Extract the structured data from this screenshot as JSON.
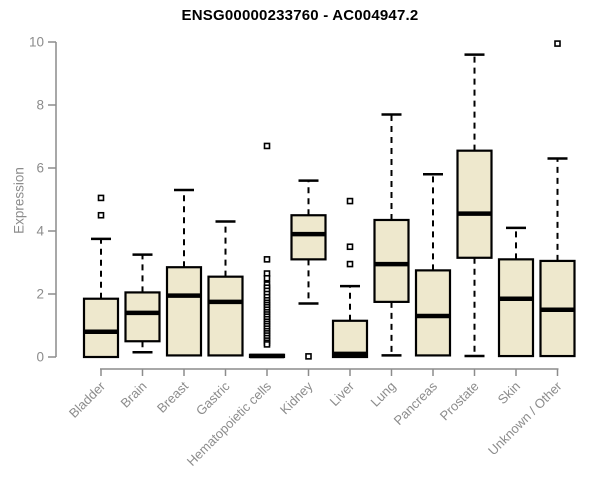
{
  "chart_data": {
    "type": "boxplot",
    "title": "ENSG00000233760 - AC004947.2",
    "ylabel": "Expression",
    "xlabel": "",
    "ylim": [
      0,
      10
    ],
    "yticks": [
      0,
      2,
      4,
      6,
      8,
      10
    ],
    "grid": false,
    "legend": null,
    "categories": [
      "Bladder",
      "Brain",
      "Breast",
      "Gastric",
      "Hematopoietic cells",
      "Kidney",
      "Liver",
      "Lung",
      "Pancreas",
      "Prostate",
      "Skin",
      "Unknown / Other"
    ],
    "series": [
      {
        "category": "Bladder",
        "whisker_low": 0,
        "q1": 0,
        "median": 0.8,
        "q3": 1.85,
        "whisker_high": 3.75,
        "outliers": [
          5.05,
          4.5
        ]
      },
      {
        "category": "Brain",
        "whisker_low": 0.15,
        "q1": 0.5,
        "median": 1.4,
        "q3": 2.05,
        "whisker_high": 3.25,
        "outliers": []
      },
      {
        "category": "Breast",
        "whisker_low": 0.05,
        "q1": 0.05,
        "median": 1.95,
        "q3": 2.85,
        "whisker_high": 5.3,
        "outliers": []
      },
      {
        "category": "Gastric",
        "whisker_low": 0.05,
        "q1": 0.05,
        "median": 1.75,
        "q3": 2.55,
        "whisker_high": 4.3,
        "outliers": []
      },
      {
        "category": "Hematopoietic cells",
        "whisker_low": 0,
        "q1": 0,
        "median": 0.03,
        "q3": 0.07,
        "whisker_high": 0.07,
        "outliers": [
          6.7,
          3.1,
          2.65,
          2.5,
          2.3,
          2.2,
          2.1,
          2.0,
          1.9,
          1.8,
          1.72,
          1.65,
          1.58,
          1.5,
          1.42,
          1.35,
          1.28,
          1.2,
          1.12,
          1.05,
          0.98,
          0.9,
          0.82,
          0.75,
          0.68,
          0.6,
          0.52,
          0.45,
          0.4
        ]
      },
      {
        "category": "Kidney",
        "whisker_low": 1.7,
        "q1": 3.1,
        "median": 3.9,
        "q3": 4.5,
        "whisker_high": 5.6,
        "outliers": [
          0.02
        ]
      },
      {
        "category": "Liver",
        "whisker_low": 0,
        "q1": 0,
        "median": 0.1,
        "q3": 1.15,
        "whisker_high": 2.25,
        "outliers": [
          4.95,
          3.5,
          2.95
        ]
      },
      {
        "category": "Lung",
        "whisker_low": 0.05,
        "q1": 1.75,
        "median": 2.95,
        "q3": 4.35,
        "whisker_high": 7.7,
        "outliers": []
      },
      {
        "category": "Pancreas",
        "whisker_low": 0.05,
        "q1": 0.05,
        "median": 1.3,
        "q3": 2.75,
        "whisker_high": 5.8,
        "outliers": []
      },
      {
        "category": "Prostate",
        "whisker_low": 0.03,
        "q1": 3.15,
        "median": 4.55,
        "q3": 6.55,
        "whisker_high": 9.6,
        "outliers": []
      },
      {
        "category": "Skin",
        "whisker_low": 0.03,
        "q1": 0.03,
        "median": 1.85,
        "q3": 3.1,
        "whisker_high": 4.1,
        "outliers": []
      },
      {
        "category": "Unknown / Other",
        "whisker_low": 0.03,
        "q1": 0.03,
        "median": 1.5,
        "q3": 3.05,
        "whisker_high": 6.3,
        "outliers": [
          9.95
        ]
      }
    ],
    "colors": {
      "box_fill": "#EEE8CD",
      "box_stroke": "#000000",
      "median": "#000000",
      "whisker": "#000000",
      "outlier_fill": "#FFFFFF",
      "outlier_stroke": "#000000",
      "axis": "#8C8C8C",
      "tick_label": "#8C8C8C",
      "title": "#000000"
    }
  }
}
